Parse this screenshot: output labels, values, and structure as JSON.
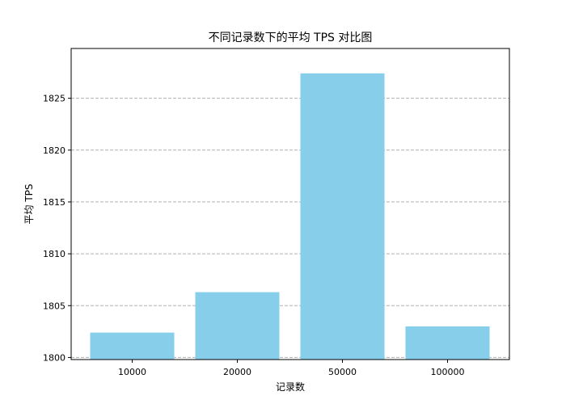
{
  "chart_data": {
    "type": "bar",
    "title": "不同记录数下的平均 TPS 对比图",
    "xlabel": "记录数",
    "ylabel": "平均 TPS",
    "categories": [
      "10000",
      "20000",
      "50000",
      "100000"
    ],
    "values": [
      1802.4,
      1806.3,
      1827.4,
      1803.0
    ],
    "ylim": [
      1799.8,
      1829.8
    ],
    "yticks": [
      1800,
      1805,
      1810,
      1815,
      1820,
      1825
    ],
    "ytick_labels": [
      "1800",
      "1805",
      "1810",
      "1815",
      "1820",
      "1825"
    ],
    "grid": "y-dashed",
    "bar_color": "#87CEEB",
    "grid_color": "#b0b0b0"
  }
}
